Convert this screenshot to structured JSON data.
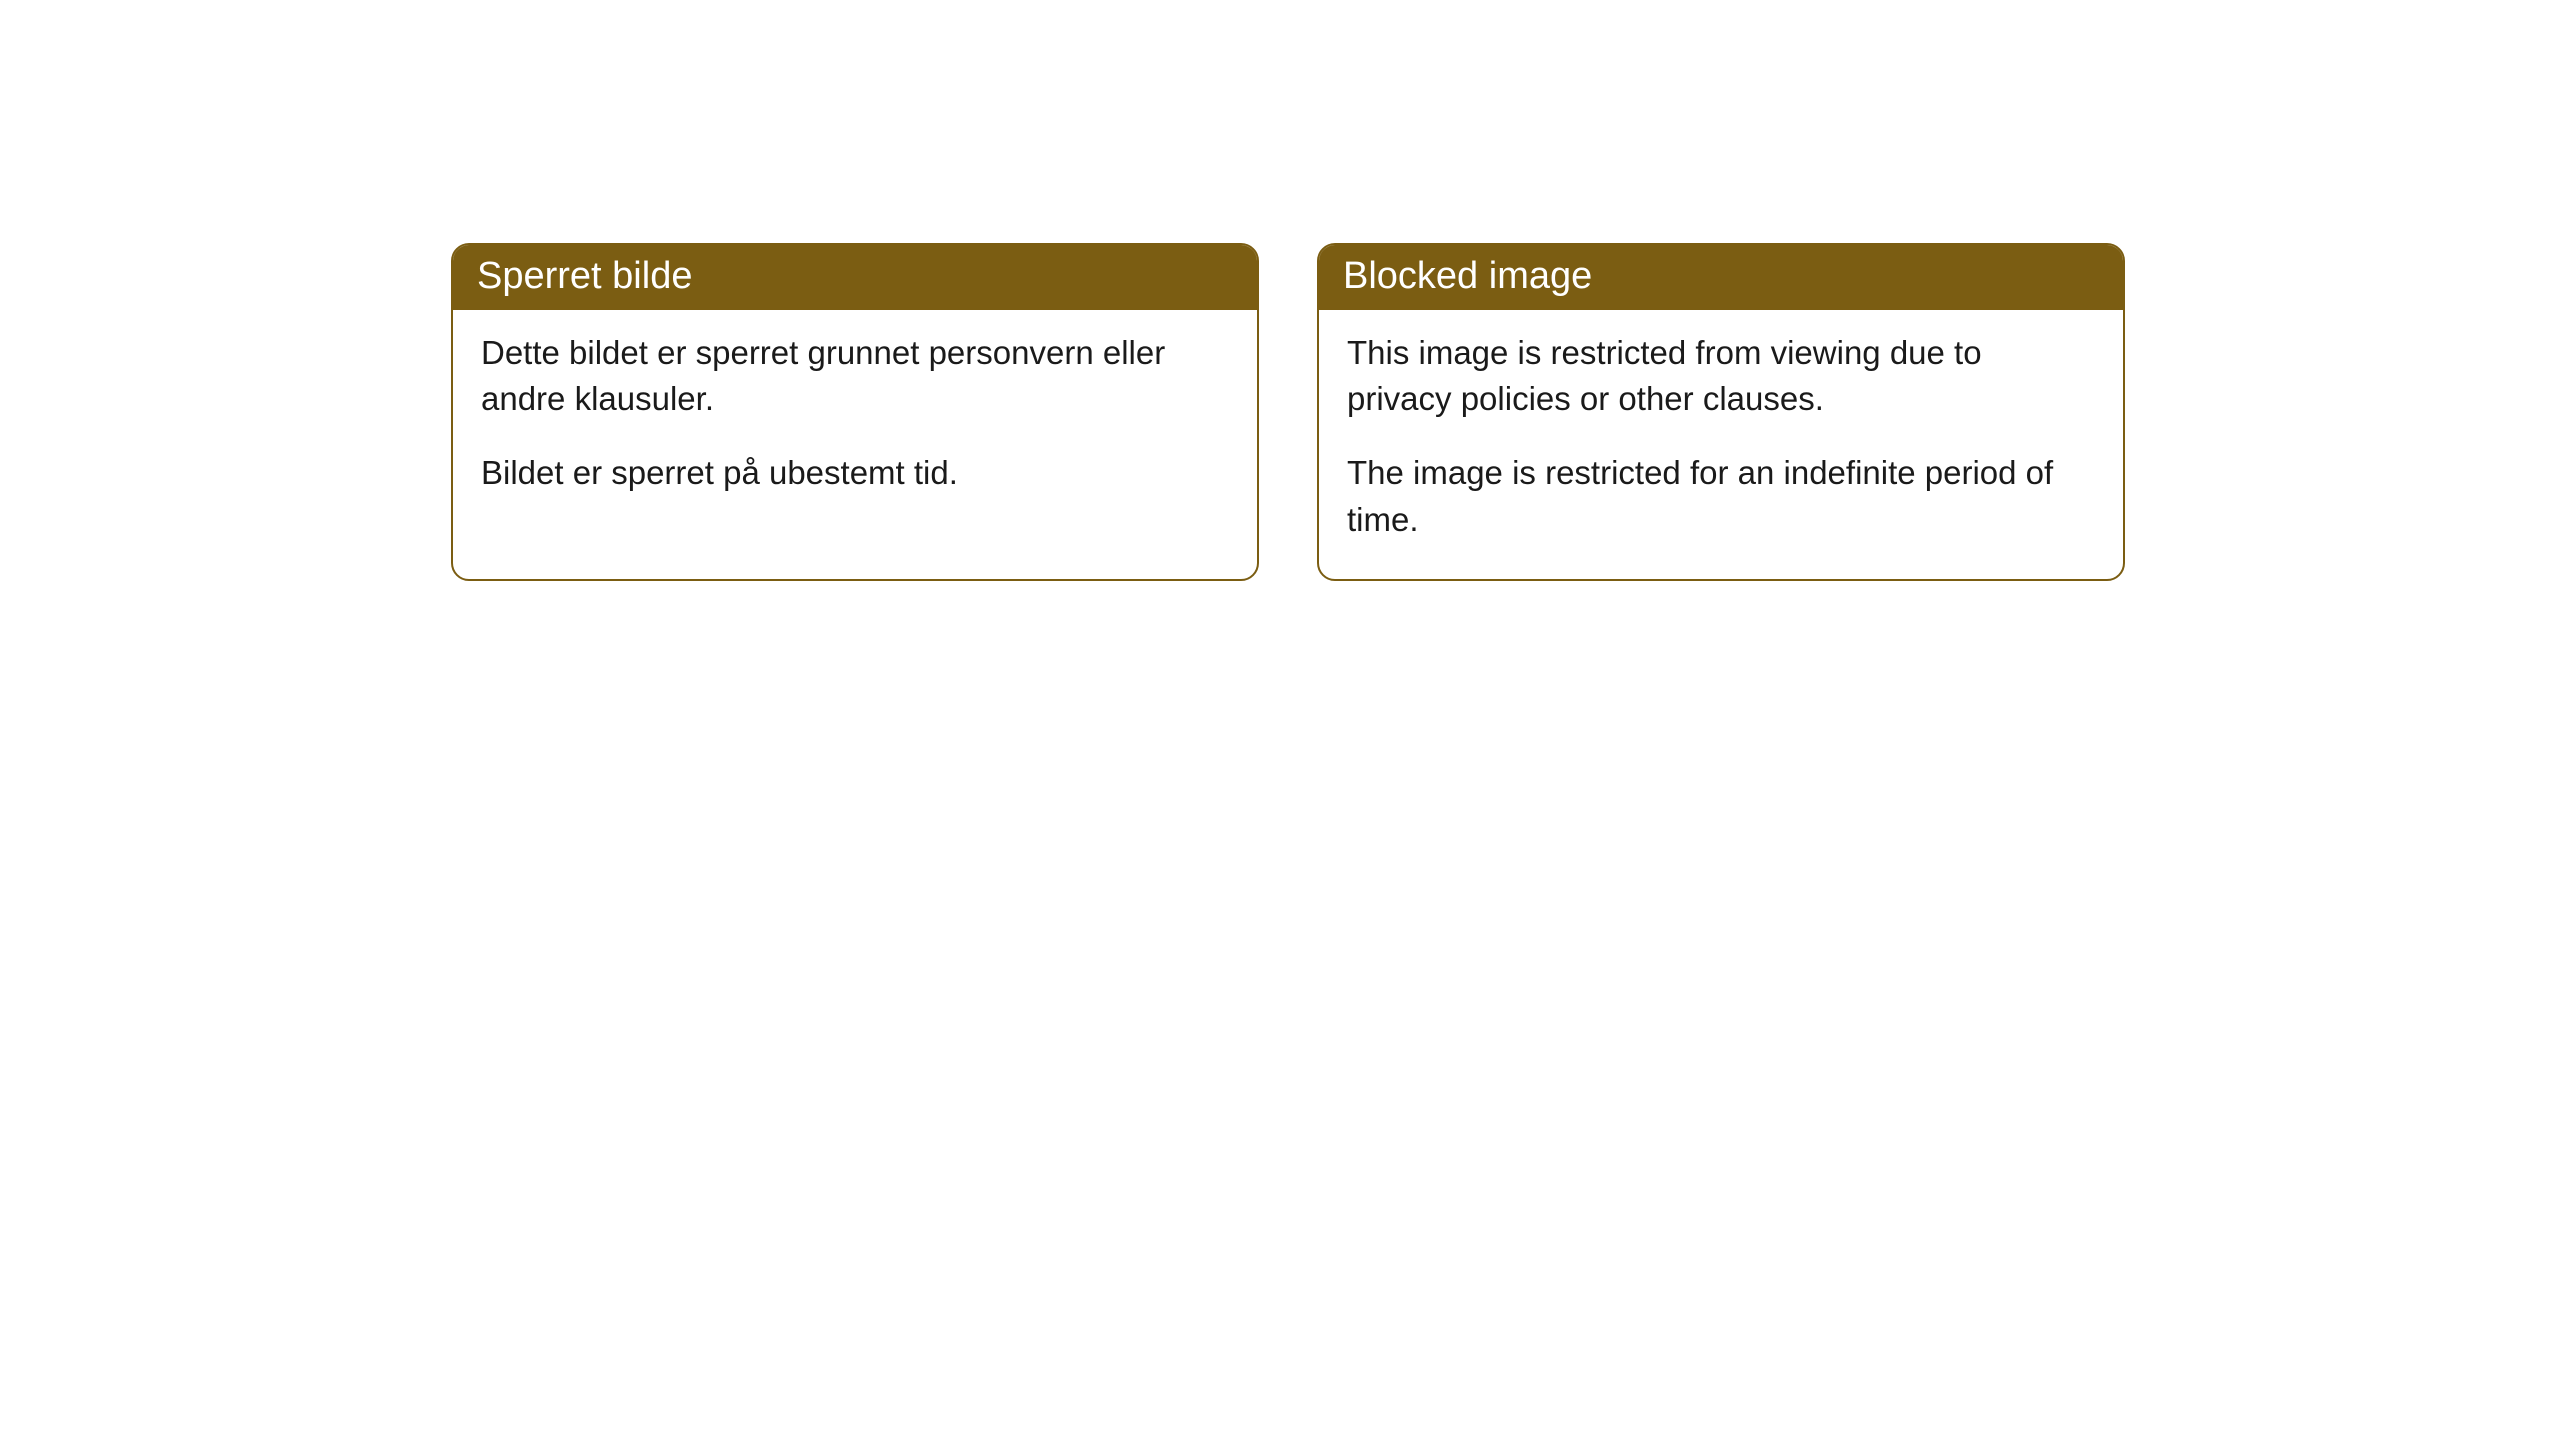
{
  "cards": [
    {
      "title": "Sperret bilde",
      "paragraph1": "Dette bildet er sperret grunnet personvern eller andre klausuler.",
      "paragraph2": "Bildet er sperret på ubestemt tid."
    },
    {
      "title": "Blocked image",
      "paragraph1": "This image is restricted from viewing due to privacy policies or other clauses.",
      "paragraph2": "The image is restricted for an indefinite period of time."
    }
  ],
  "style": {
    "header_bg": "#7b5d12",
    "header_text_color": "#ffffff",
    "border_color": "#7b5d12",
    "body_bg": "#ffffff",
    "body_text_color": "#1a1a1a",
    "border_radius": 18,
    "header_fontsize": 38,
    "body_fontsize": 33
  }
}
